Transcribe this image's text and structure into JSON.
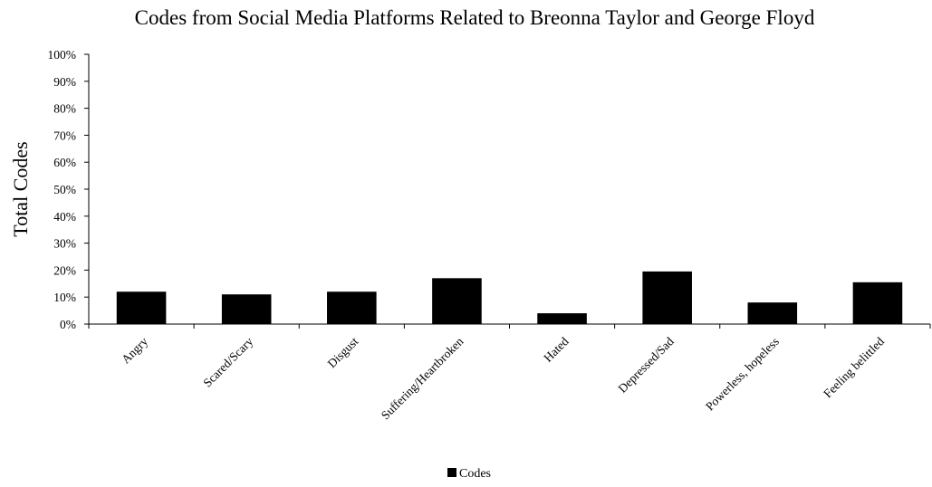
{
  "chart_data": {
    "type": "bar",
    "title": "Codes from Social Media Platforms Related to Breonna Taylor and George Floyd",
    "xlabel": "",
    "ylabel": "Total Codes",
    "ylim": [
      0,
      100
    ],
    "y_ticks": [
      "0%",
      "10%",
      "20%",
      "30%",
      "40%",
      "50%",
      "60%",
      "70%",
      "80%",
      "90%",
      "100%"
    ],
    "categories": [
      "Angry",
      "Scared/Scary",
      "Disgust",
      "Suffering/Heartbroken",
      "Hated",
      "Depressed/Sad",
      "Powerless, hopeless",
      "Feeling belittled"
    ],
    "series": [
      {
        "name": "Codes",
        "values": [
          12,
          11,
          12,
          17,
          4,
          19.5,
          8,
          15.5
        ],
        "color": "#000000"
      }
    ],
    "grid": false,
    "legend_position": "bottom"
  }
}
